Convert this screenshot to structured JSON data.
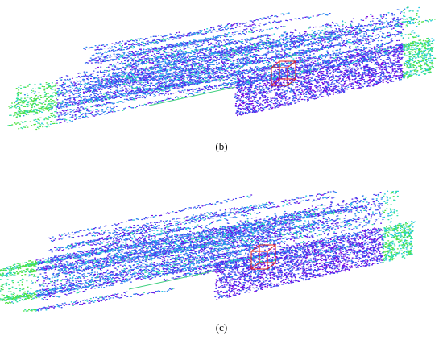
{
  "figures": [
    {
      "caption": "(b)"
    },
    {
      "caption": "(c)"
    }
  ]
}
